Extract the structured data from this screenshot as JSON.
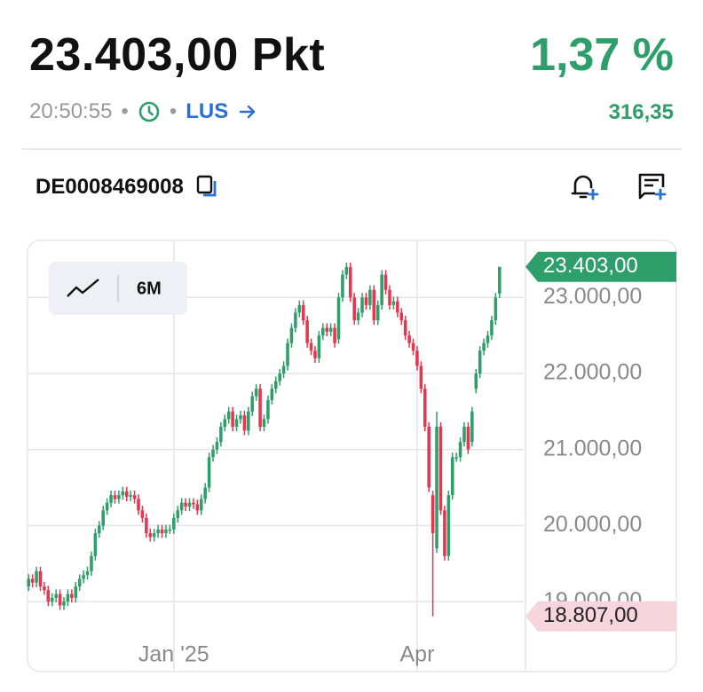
{
  "header": {
    "price": "23.403,00 Pkt",
    "change_percent": "1,37 %",
    "time": "20:50:55",
    "exchange": "LUS",
    "change_absolute": "316,35",
    "isin": "DE0008469008"
  },
  "chart_data": {
    "type": "candlestick",
    "range": "6M",
    "categories": [
      null,
      null,
      null,
      null,
      null,
      null,
      null,
      null,
      null,
      null,
      null,
      null,
      null,
      null,
      null,
      null,
      null,
      null,
      null,
      null,
      null,
      null,
      null,
      null,
      null,
      null,
      null,
      null,
      null,
      null,
      null,
      null,
      null,
      null,
      null,
      null,
      null,
      "Jan '25",
      null,
      null,
      null,
      null,
      null,
      null,
      null,
      null,
      null,
      null,
      null,
      null,
      null,
      null,
      null,
      null,
      null,
      null,
      null,
      null,
      null,
      null,
      null,
      null,
      null,
      null,
      null,
      null,
      null,
      null,
      null,
      null,
      null,
      null,
      null,
      null,
      null,
      null,
      null,
      null,
      null,
      null,
      null,
      null,
      null,
      null,
      null,
      null,
      null,
      null,
      null,
      null,
      null,
      null,
      null,
      null,
      null,
      null,
      null,
      null,
      null,
      "Apr",
      null,
      null,
      null,
      null,
      null,
      null,
      null,
      null,
      null,
      null,
      null,
      null,
      null,
      null,
      null,
      null,
      null,
      null,
      null,
      null,
      null
    ],
    "open": [
      19200,
      19300,
      19250,
      19400,
      19200,
      19150,
      19000,
      19050,
      19100,
      18950,
      19000,
      19100,
      19050,
      19200,
      19300,
      19350,
      19400,
      19600,
      19900,
      20000,
      20200,
      20300,
      20400,
      20350,
      20400,
      20450,
      20380,
      20400,
      20350,
      20200,
      20100,
      19900,
      19850,
      19900,
      19950,
      19900,
      19950,
      19950,
      20100,
      20200,
      20300,
      20250,
      20300,
      20280,
      20200,
      20350,
      20500,
      20900,
      21000,
      21100,
      21300,
      21400,
      21500,
      21300,
      21400,
      21450,
      21250,
      21500,
      21700,
      21800,
      21300,
      21400,
      21650,
      21800,
      21900,
      22000,
      22100,
      22400,
      22600,
      22800,
      22900,
      22700,
      22400,
      22300,
      22200,
      22500,
      22600,
      22550,
      22600,
      22450,
      23000,
      23300,
      23400,
      23000,
      22700,
      22800,
      23000,
      22900,
      23100,
      22700,
      22900,
      23300,
      23100,
      22900,
      22950,
      22800,
      22700,
      22500,
      22400,
      22300,
      22100,
      21800,
      21300,
      20400,
      19700,
      21300,
      20200,
      19600,
      20400,
      20900,
      20900,
      21100,
      21300,
      21100,
      21800,
      22000,
      22300,
      22400,
      22500,
      22700,
      23050
    ],
    "high": [
      19360,
      19360,
      19460,
      19460,
      19260,
      19210,
      19110,
      19160,
      19160,
      19060,
      19160,
      19160,
      19260,
      19360,
      19410,
      19460,
      19660,
      19960,
      20060,
      20260,
      20360,
      20460,
      20460,
      20460,
      20510,
      20510,
      20460,
      20460,
      20410,
      20260,
      20160,
      19960,
      19960,
      20010,
      20010,
      20010,
      20010,
      20160,
      20260,
      20360,
      20360,
      20360,
      20360,
      20340,
      20410,
      20560,
      20960,
      21060,
      21160,
      21360,
      21460,
      21560,
      21560,
      21460,
      21510,
      21510,
      21560,
      21760,
      21860,
      21860,
      21460,
      21710,
      21860,
      21960,
      22060,
      22160,
      22460,
      22660,
      22860,
      22960,
      22960,
      22760,
      22460,
      22360,
      22560,
      22660,
      22660,
      22660,
      22660,
      23060,
      23360,
      23460,
      23460,
      23060,
      22860,
      23060,
      23060,
      23160,
      23160,
      22960,
      23360,
      23360,
      23160,
      23010,
      23010,
      22860,
      22760,
      22560,
      22460,
      22360,
      22160,
      21860,
      21360,
      20460,
      21500,
      21360,
      20260,
      20460,
      20960,
      20960,
      21160,
      21360,
      21360,
      21560,
      22060,
      22360,
      22460,
      22560,
      22760,
      23060,
      23403
    ],
    "low": [
      19140,
      19190,
      19190,
      19140,
      19090,
      18940,
      18940,
      18990,
      18890,
      18890,
      18940,
      18990,
      18990,
      19140,
      19240,
      19290,
      19340,
      19540,
      19840,
      19940,
      20140,
      20240,
      20290,
      20290,
      20340,
      20320,
      20320,
      20290,
      20140,
      20040,
      19840,
      19790,
      19790,
      19840,
      19840,
      19840,
      19890,
      19890,
      20040,
      20140,
      20190,
      20190,
      20220,
      20140,
      20140,
      20290,
      20440,
      20840,
      20940,
      21040,
      21240,
      21340,
      21240,
      21240,
      21340,
      21190,
      21190,
      21440,
      21640,
      21240,
      21240,
      21340,
      21590,
      21740,
      21840,
      21940,
      22040,
      22340,
      22540,
      22740,
      22640,
      22340,
      22240,
      22140,
      22140,
      22440,
      22490,
      22490,
      22340,
      22390,
      22940,
      23240,
      22940,
      22640,
      22640,
      22740,
      22840,
      22840,
      22640,
      22640,
      22840,
      23040,
      22840,
      22840,
      22740,
      22640,
      22440,
      22340,
      22240,
      22040,
      21740,
      21240,
      20440,
      18807,
      19640,
      20140,
      19540,
      19540,
      20340,
      20840,
      20840,
      21040,
      20940,
      21040,
      21740,
      21940,
      22240,
      22340,
      22440,
      22640,
      22990
    ],
    "close": [
      19300,
      19250,
      19400,
      19200,
      19150,
      19000,
      19050,
      19100,
      18950,
      19000,
      19100,
      19050,
      19200,
      19300,
      19350,
      19400,
      19600,
      19900,
      20000,
      20200,
      20300,
      20400,
      20350,
      20400,
      20450,
      20380,
      20400,
      20350,
      20200,
      20100,
      19900,
      19850,
      19900,
      19950,
      19900,
      19950,
      19950,
      20100,
      20200,
      20300,
      20250,
      20300,
      20280,
      20200,
      20350,
      20500,
      20900,
      21000,
      21100,
      21300,
      21400,
      21500,
      21300,
      21400,
      21450,
      21250,
      21500,
      21700,
      21800,
      21300,
      21400,
      21650,
      21800,
      21900,
      22000,
      22100,
      22400,
      22600,
      22800,
      22900,
      22700,
      22400,
      22300,
      22200,
      22500,
      22600,
      22550,
      22600,
      22400,
      23000,
      23300,
      23400,
      23000,
      22700,
      22800,
      23000,
      22900,
      23100,
      22700,
      22900,
      23300,
      23100,
      22900,
      22950,
      22800,
      22700,
      22500,
      22400,
      22300,
      22100,
      21800,
      21300,
      20500,
      19900,
      21300,
      20200,
      19600,
      20400,
      20900,
      20900,
      21100,
      21300,
      21000,
      21500,
      22000,
      22300,
      22400,
      22500,
      22700,
      23000,
      23403
    ],
    "up_color": "#2e9e6b",
    "down_color": "#e8344e",
    "ylim": [
      18080,
      23750
    ],
    "yticks": [
      {
        "value": 19000,
        "label": "19.000,00"
      },
      {
        "value": 20000,
        "label": "20.000,00"
      },
      {
        "value": 21000,
        "label": "21.000,00"
      },
      {
        "value": 22000,
        "label": "22.000,00"
      },
      {
        "value": 23000,
        "label": "23.000,00"
      }
    ],
    "grid": true,
    "last_price": {
      "value": 23403,
      "label": "23.403,00"
    },
    "min_price": {
      "value": 18807,
      "label": "18.807,00"
    }
  }
}
